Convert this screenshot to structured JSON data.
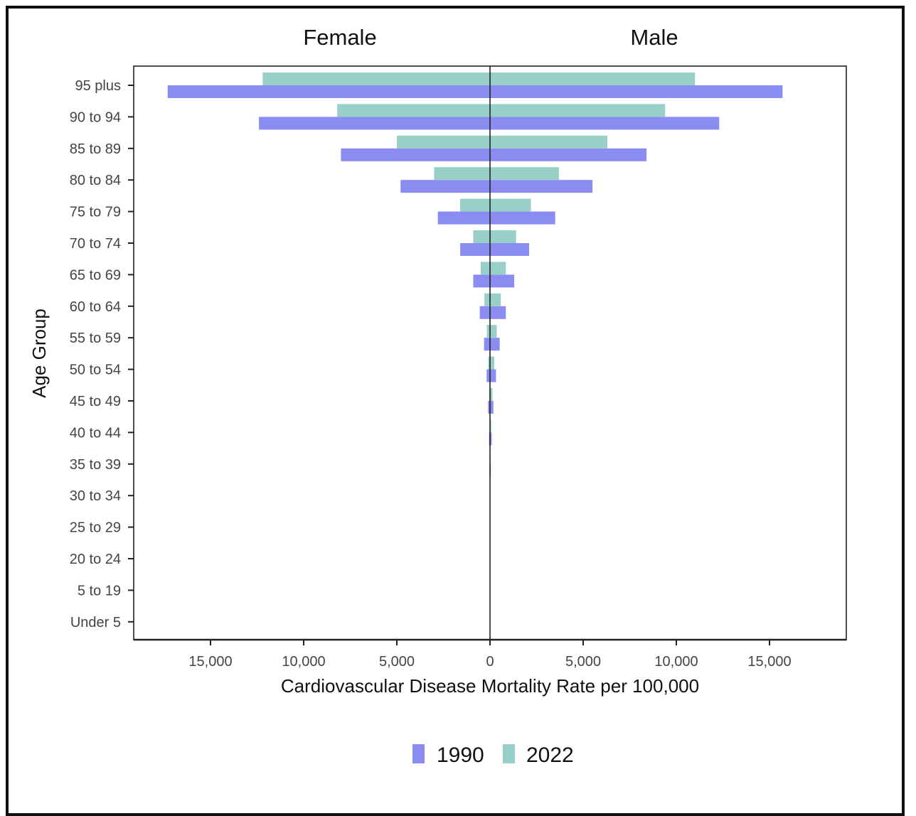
{
  "chart_data": {
    "type": "bar",
    "orientation": "horizontal",
    "layout": "population-pyramid",
    "facets": [
      "Female",
      "Male"
    ],
    "ylabel": "Age Group",
    "xlabel": "Cardiovascular Disease Mortality Rate per 100,000",
    "xlim": [
      -19000,
      19000
    ],
    "xticks": [
      -15000,
      -10000,
      -5000,
      0,
      5000,
      10000,
      15000
    ],
    "xtick_labels": [
      "15,000",
      "10,000",
      "5,000",
      "0",
      "5,000",
      "10,000",
      "15,000"
    ],
    "categories": [
      "95 plus",
      "90 to 94",
      "85 to 89",
      "80 to 84",
      "75 to 79",
      "70 to 74",
      "65 to 69",
      "60 to 64",
      "55 to 59",
      "50 to 54",
      "45 to 49",
      "40 to 44",
      "35 to 39",
      "30 to 34",
      "25 to 29",
      "20 to 24",
      "5 to 19",
      "Under 5"
    ],
    "series": [
      {
        "name": "1990",
        "color": "#8a8cf2",
        "female": [
          17300,
          12400,
          8000,
          4800,
          2800,
          1600,
          900,
          550,
          320,
          180,
          100,
          50,
          25,
          12,
          6,
          3,
          2,
          2
        ],
        "male": [
          15700,
          12300,
          8400,
          5500,
          3500,
          2100,
          1300,
          850,
          520,
          320,
          180,
          90,
          40,
          20,
          10,
          5,
          3,
          2
        ]
      },
      {
        "name": "2022",
        "color": "#98cfc9",
        "female": [
          12200,
          8200,
          5000,
          3000,
          1600,
          900,
          500,
          300,
          170,
          90,
          50,
          25,
          12,
          6,
          3,
          2,
          1,
          1
        ],
        "male": [
          11000,
          9400,
          6300,
          3700,
          2200,
          1400,
          850,
          580,
          360,
          230,
          130,
          65,
          30,
          15,
          8,
          4,
          2,
          1
        ]
      }
    ],
    "legend": {
      "position": "bottom",
      "labels": [
        "1990",
        "2022"
      ]
    },
    "grid": false
  }
}
